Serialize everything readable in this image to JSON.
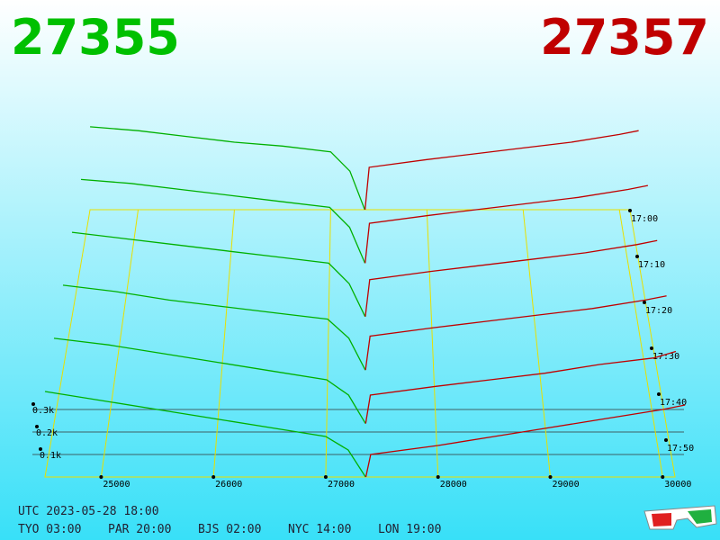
{
  "chart_data": {
    "type": "depth3d",
    "bid": 27355,
    "ask": 27357,
    "bid_color": "#00c000",
    "ask_color": "#c00000",
    "xlim": [
      24500,
      30110
    ],
    "xticks": [
      25000,
      26000,
      27000,
      28000,
      29000,
      30000
    ],
    "zticks": [
      {
        "value": 0.1,
        "label": "0.1k"
      },
      {
        "value": 0.2,
        "label": "0.2k"
      },
      {
        "value": 0.3,
        "label": "0.3k"
      }
    ],
    "times": [
      "17:00",
      "17:10",
      "17:20",
      "17:30",
      "17:40",
      "17:50"
    ],
    "bids": {
      "color": "#00b000",
      "prices": [
        24500,
        25000,
        25500,
        26000,
        26500,
        27000,
        27200,
        27355
      ],
      "snapshots": [
        [
          0.43,
          0.41,
          0.38,
          0.35,
          0.33,
          0.3,
          0.2,
          0
        ],
        [
          0.42,
          0.4,
          0.37,
          0.34,
          0.31,
          0.28,
          0.18,
          0
        ],
        [
          0.41,
          0.38,
          0.35,
          0.32,
          0.29,
          0.26,
          0.16,
          0
        ],
        [
          0.4,
          0.37,
          0.33,
          0.3,
          0.27,
          0.24,
          0.15,
          0
        ],
        [
          0.39,
          0.36,
          0.32,
          0.28,
          0.24,
          0.2,
          0.13,
          0
        ],
        [
          0.38,
          0.34,
          0.3,
          0.26,
          0.22,
          0.18,
          0.12,
          0
        ]
      ]
    },
    "asks": {
      "color": "#c00000",
      "prices": [
        27357,
        27400,
        28000,
        28500,
        29000,
        29500,
        30000,
        30200
      ],
      "snapshots": [
        [
          0,
          0.22,
          0.26,
          0.29,
          0.32,
          0.35,
          0.39,
          0.41
        ],
        [
          0,
          0.2,
          0.24,
          0.27,
          0.3,
          0.33,
          0.37,
          0.39
        ],
        [
          0,
          0.18,
          0.22,
          0.25,
          0.28,
          0.31,
          0.35,
          0.37
        ],
        [
          0,
          0.16,
          0.2,
          0.23,
          0.26,
          0.29,
          0.33,
          0.35
        ],
        [
          0,
          0.13,
          0.17,
          0.2,
          0.23,
          0.27,
          0.3,
          0.33
        ],
        [
          0,
          0.1,
          0.14,
          0.18,
          0.22,
          0.26,
          0.3,
          0.32
        ]
      ]
    },
    "utc": "UTC 2023-05-28 18:00",
    "clocks": [
      "TYO 03:00",
      "PAR 20:00",
      "BJS 02:00",
      "NYC 14:00",
      "LON 19:00"
    ]
  }
}
